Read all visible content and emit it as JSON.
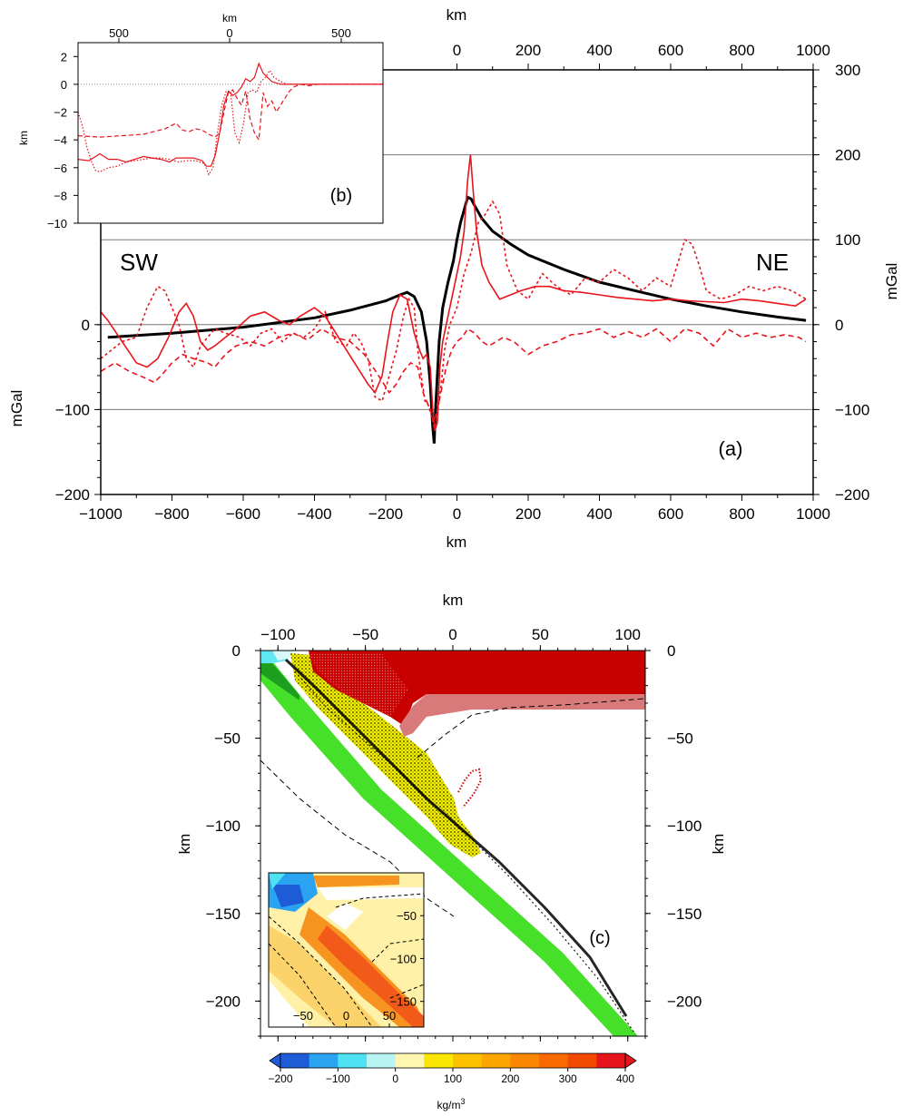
{
  "chart_data": [
    {
      "type": "line",
      "panel_label": "(a)",
      "xlabel": "km",
      "ylabel_left": "mGal",
      "ylabel_right": "mGal",
      "top_xlabel": "km",
      "xlim": [
        -1000,
        1000
      ],
      "ylim": [
        -200,
        300
      ],
      "left_yticks": [
        -200,
        -100,
        0
      ],
      "right_yticks": [
        -200,
        -100,
        0,
        100,
        200,
        300
      ],
      "bottom_xticks": [
        -1000,
        -800,
        -600,
        -400,
        -200,
        0,
        200,
        400,
        600,
        800,
        1000
      ],
      "top_xticks": [
        0,
        200,
        400,
        600,
        800,
        1000
      ],
      "hgrid": [
        -100,
        0,
        100,
        200
      ],
      "annotations": [
        "SW",
        "NE"
      ],
      "colors": {
        "model": "#000000",
        "observed": "#e8141b"
      },
      "series": [
        {
          "style": "solid",
          "color": "#000000",
          "x": [
            -980,
            -800,
            -600,
            -400,
            -300,
            -200,
            -160,
            -140,
            -120,
            -100,
            -85,
            -75,
            -68,
            -64,
            -60,
            -50,
            -40,
            -25,
            -10,
            0,
            10,
            20,
            30,
            40,
            50,
            70,
            100,
            150,
            200,
            300,
            400,
            500,
            600,
            700,
            800,
            900,
            980
          ],
          "y": [
            -15,
            -10,
            -3,
            8,
            17,
            28,
            35,
            38,
            33,
            15,
            -20,
            -70,
            -120,
            -140,
            -100,
            -20,
            20,
            50,
            75,
            100,
            120,
            135,
            150,
            148,
            140,
            125,
            110,
            95,
            82,
            65,
            50,
            40,
            30,
            22,
            15,
            9,
            5
          ]
        },
        {
          "style": "solid",
          "color": "#e8141b",
          "x": [
            -1000,
            -980,
            -940,
            -900,
            -870,
            -840,
            -810,
            -780,
            -760,
            -740,
            -720,
            -700,
            -680,
            -650,
            -620,
            -580,
            -540,
            -500,
            -470,
            -440,
            -400,
            -370,
            -340,
            -310,
            -280,
            -250,
            -230,
            -210,
            -195,
            -180,
            -160,
            -140,
            -120,
            -105,
            -95,
            -85,
            -75,
            -68,
            -62,
            -55,
            -48,
            -40,
            -30,
            -15,
            0,
            10,
            20,
            30,
            38,
            45,
            55,
            70,
            90,
            120,
            150,
            180,
            220,
            260,
            300,
            350,
            400,
            450,
            500,
            550,
            600,
            650,
            700,
            750,
            800,
            850,
            900,
            950,
            980
          ],
          "y": [
            15,
            5,
            -20,
            -45,
            -50,
            -40,
            -15,
            15,
            25,
            10,
            -20,
            -30,
            -25,
            -15,
            -5,
            10,
            15,
            5,
            0,
            10,
            20,
            10,
            -10,
            -30,
            -50,
            -70,
            -80,
            -60,
            -20,
            15,
            35,
            30,
            -10,
            -30,
            -40,
            -35,
            -50,
            -100,
            -125,
            -115,
            -50,
            -20,
            0,
            30,
            60,
            80,
            110,
            170,
            200,
            160,
            110,
            70,
            50,
            30,
            35,
            40,
            45,
            45,
            40,
            38,
            35,
            32,
            30,
            28,
            30,
            28,
            27,
            26,
            30,
            28,
            25,
            22,
            30
          ]
        },
        {
          "style": "dashed",
          "color": "#e8141b",
          "x": [
            -1000,
            -960,
            -920,
            -880,
            -850,
            -830,
            -800,
            -770,
            -740,
            -700,
            -680,
            -650,
            -620,
            -580,
            -540,
            -500,
            -460,
            -420,
            -380,
            -340,
            -300,
            -260,
            -220,
            -190,
            -170,
            -150,
            -130,
            -110,
            -95,
            -85,
            -75,
            -65,
            -55,
            -45,
            -30,
            -15,
            0,
            15,
            30,
            50,
            70,
            90,
            110,
            130,
            160,
            200,
            240,
            280,
            320,
            360,
            400,
            440,
            480,
            520,
            560,
            600,
            640,
            680,
            720,
            760,
            800,
            840,
            880,
            920,
            960,
            980
          ],
          "y": [
            -55,
            -45,
            -55,
            -62,
            -68,
            -60,
            -45,
            -35,
            -40,
            -45,
            -50,
            -35,
            -25,
            -20,
            -25,
            -15,
            -10,
            -18,
            -5,
            -15,
            -20,
            -35,
            -60,
            -80,
            -70,
            -55,
            -45,
            -50,
            -80,
            -90,
            -100,
            -115,
            -100,
            -80,
            -50,
            -30,
            -20,
            -15,
            -5,
            -10,
            -20,
            -25,
            -20,
            -15,
            -20,
            -35,
            -25,
            -20,
            -12,
            -10,
            -5,
            -15,
            -8,
            -15,
            -5,
            -20,
            -5,
            -10,
            -25,
            -5,
            -15,
            -10,
            -15,
            -12,
            -15,
            -20
          ]
        },
        {
          "style": "dotted",
          "color": "#e8141b",
          "x": [
            -1000,
            -970,
            -940,
            -900,
            -870,
            -840,
            -820,
            -800,
            -780,
            -760,
            -740,
            -720,
            -700,
            -680,
            -650,
            -610,
            -580,
            -550,
            -520,
            -490,
            -460,
            -430,
            -400,
            -370,
            -340,
            -310,
            -290,
            -270,
            -250,
            -230,
            -210,
            -190,
            -170,
            -150,
            -135,
            -120,
            -110,
            -100,
            -90,
            -80,
            -70,
            -62,
            -55,
            -45,
            -35,
            -20,
            0,
            20,
            40,
            60,
            80,
            100,
            120,
            140,
            170,
            200,
            240,
            280,
            320,
            360,
            400,
            440,
            480,
            520,
            560,
            600,
            640,
            660,
            680,
            700,
            740,
            780,
            820,
            860,
            900,
            940,
            980
          ],
          "y": [
            -40,
            -30,
            -20,
            -15,
            20,
            45,
            40,
            20,
            0,
            -40,
            -50,
            -25,
            -15,
            -5,
            -10,
            -15,
            -25,
            -10,
            -5,
            -20,
            -10,
            -15,
            -5,
            15,
            -20,
            -25,
            -10,
            -20,
            -40,
            -85,
            -90,
            -60,
            -30,
            10,
            30,
            20,
            -30,
            -60,
            -90,
            -95,
            -110,
            -125,
            -105,
            -75,
            -30,
            0,
            20,
            60,
            85,
            120,
            130,
            145,
            130,
            70,
            40,
            30,
            60,
            45,
            35,
            55,
            50,
            65,
            55,
            40,
            55,
            45,
            100,
            95,
            70,
            40,
            30,
            35,
            45,
            40,
            45,
            40,
            30
          ]
        }
      ]
    },
    {
      "type": "line",
      "panel_label": "(b)",
      "xlabel": "km",
      "ylabel": "km",
      "xticks": [
        "500",
        "0",
        "500"
      ],
      "yticks": [
        2,
        0,
        -2,
        -4,
        -6,
        -8,
        -10
      ],
      "ylim": [
        -10,
        3
      ],
      "xlim": [
        -700,
        700
      ],
      "series": [
        {
          "style": "solid",
          "x": [
            -700,
            -650,
            -600,
            -560,
            -520,
            -480,
            -440,
            -400,
            -360,
            -320,
            -280,
            -250,
            -230,
            -210,
            -190,
            -170,
            -150,
            -130,
            -110,
            -90,
            -70,
            -50,
            -30,
            -10,
            10,
            30,
            50,
            70,
            90,
            110,
            130,
            150,
            170,
            190,
            210,
            230,
            250,
            270,
            290,
            310,
            340,
            380,
            420,
            460,
            500,
            550,
            600,
            650,
            700
          ],
          "y": [
            -5.4,
            -5.5,
            -5.0,
            -5.4,
            -5.4,
            -5.6,
            -5.4,
            -5.2,
            -5.3,
            -5.4,
            -5.6,
            -5.3,
            -5.3,
            -5.3,
            -5.3,
            -5.3,
            -5.4,
            -5.5,
            -5.9,
            -5.9,
            -5.1,
            -3.5,
            -1.5,
            -0.5,
            -0.8,
            -0.6,
            -0.2,
            0.4,
            0.2,
            0.5,
            1.5,
            0.8,
            0.5,
            0.2,
            0.1,
            0.0,
            0.0,
            0.0,
            0.0,
            0.0,
            0.0,
            0.0,
            0.0,
            0.0,
            0.0,
            0.0,
            0.0,
            0.0,
            0.0
          ]
        },
        {
          "style": "dashed",
          "x": [
            -700,
            -600,
            -500,
            -400,
            -300,
            -250,
            -220,
            -190,
            -160,
            -130,
            -100,
            -70,
            -50,
            -30,
            -10,
            10,
            30,
            50,
            70,
            90,
            110,
            130,
            150,
            170,
            190,
            210,
            230,
            250,
            270,
            290,
            320,
            360,
            400,
            450,
            500,
            550,
            600,
            650,
            700
          ],
          "y": [
            -3.7,
            -3.8,
            -3.7,
            -3.6,
            -3.2,
            -2.8,
            -3.3,
            -3.4,
            -3.2,
            -3.3,
            -3.6,
            -3.8,
            -3.5,
            -2.0,
            -0.6,
            -0.4,
            -1.0,
            -1.5,
            -0.5,
            -2.5,
            -3.5,
            -4.0,
            -0.6,
            -1.6,
            -1.2,
            -2.0,
            -1.5,
            -1.0,
            -0.5,
            -0.2,
            0.0,
            -0.1,
            0.0,
            0.0,
            0.0,
            0.0,
            0.0,
            0.0,
            0.0
          ]
        },
        {
          "style": "dotted",
          "x": [
            -700,
            -680,
            -660,
            -640,
            -620,
            -600,
            -560,
            -520,
            -480,
            -440,
            -400,
            -360,
            -320,
            -280,
            -240,
            -200,
            -160,
            -120,
            -100,
            -80,
            -60,
            -40,
            -20,
            0,
            20,
            40,
            60,
            80,
            100,
            120,
            140,
            160,
            180,
            200,
            230,
            260,
            300,
            350,
            400,
            450,
            500,
            550,
            600,
            650,
            700
          ],
          "y": [
            -2.0,
            -3.0,
            -4.5,
            -5.5,
            -6.2,
            -6.3,
            -6.0,
            -5.9,
            -5.6,
            -5.5,
            -5.4,
            -5.3,
            -5.3,
            -5.4,
            -5.6,
            -5.5,
            -5.5,
            -5.7,
            -6.5,
            -6.0,
            -3.5,
            -1.5,
            -0.5,
            -0.5,
            -3.5,
            -4.2,
            -2.8,
            -0.6,
            -0.4,
            -0.6,
            0.2,
            0.5,
            1.0,
            0.5,
            0.2,
            0.0,
            0.0,
            0.0,
            0.0,
            0.0,
            0.0,
            0.0,
            0.0,
            0.0,
            0.0
          ]
        }
      ]
    },
    {
      "type": "heatmap",
      "panel_label": "(c)",
      "xlabel": "km",
      "ylabel_left": "km",
      "ylabel_right": "km",
      "xlim": [
        -110,
        110
      ],
      "ylim": [
        -220,
        0
      ],
      "xticks": [
        -100,
        -50,
        0,
        50,
        100
      ],
      "yticks": [
        0,
        -50,
        -100,
        -150,
        -200
      ],
      "colorbar": {
        "label": "kg/m3",
        "ticks": [
          -200,
          -100,
          0,
          100,
          200,
          300,
          400
        ],
        "bins": [
          -200,
          -150,
          -100,
          -50,
          0,
          50,
          100,
          150,
          200,
          250,
          300,
          350,
          400
        ],
        "colors": [
          "#1e5bd6",
          "#2aa3f0",
          "#4ee2f2",
          "#b8f4f4",
          "#ffffff",
          "#fff7b0",
          "#fae600",
          "#fcc200",
          "#fba600",
          "#fb8700",
          "#f86a00",
          "#f24a00",
          "#e8141b"
        ]
      },
      "inset": {
        "xticks": [
          -50,
          0,
          50
        ],
        "yticks": [
          -50,
          -100,
          -150
        ]
      },
      "colors": {
        "upper_plate": "#c80000",
        "upper_plate_mix": "#d87a7a",
        "slab_green": "#46e02a",
        "slab_dark": "#1e9e1e",
        "yellow": "#f4f200",
        "markers": "#000000",
        "cyan": "#5fe8f2"
      }
    }
  ]
}
